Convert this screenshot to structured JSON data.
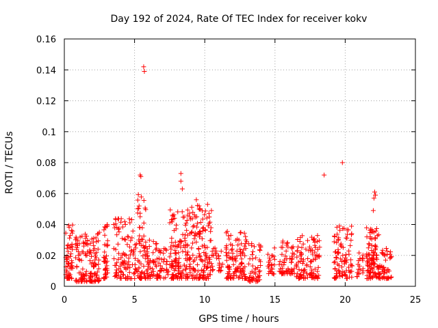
{
  "chart_data": {
    "type": "scatter",
    "title": "Day 192 of 2024, Rate Of TEC Index for receiver kokv",
    "xlabel": "GPS time / hours",
    "ylabel": "ROTI / TECUs",
    "xlim": [
      0,
      25
    ],
    "ylim": [
      0,
      0.16
    ],
    "x_ticks": [
      0,
      5,
      10,
      15,
      20,
      25
    ],
    "y_ticks": [
      0,
      0.02,
      0.04,
      0.06,
      0.08,
      0.1,
      0.12,
      0.14,
      0.16
    ],
    "x_tick_labels": [
      "0",
      "5",
      "10",
      "15",
      "20",
      "25"
    ],
    "y_tick_labels": [
      "0",
      "0.02",
      "0.04",
      "0.06",
      "0.08",
      "0.1",
      "0.12",
      "0.14",
      "0.16"
    ],
    "grid": true,
    "marker": "+",
    "series_color": "#ff0000",
    "clusters": [
      {
        "x_start": 0.1,
        "x_end": 0.6,
        "y_min": 0.005,
        "y_max": 0.04,
        "n": 60
      },
      {
        "x_start": 0.8,
        "x_end": 2.5,
        "y_min": 0.003,
        "y_max": 0.035,
        "n": 140
      },
      {
        "x_start": 2.8,
        "x_end": 3.1,
        "y_min": 0.005,
        "y_max": 0.04,
        "n": 40
      },
      {
        "x_start": 3.5,
        "x_end": 5.2,
        "y_min": 0.005,
        "y_max": 0.045,
        "n": 110
      },
      {
        "x_start": 5.2,
        "x_end": 5.8,
        "y_min": 0.005,
        "y_max": 0.06,
        "n": 60
      },
      {
        "x_start": 5.8,
        "x_end": 7.4,
        "y_min": 0.005,
        "y_max": 0.03,
        "n": 90
      },
      {
        "x_start": 7.5,
        "x_end": 8.8,
        "y_min": 0.005,
        "y_max": 0.05,
        "n": 130
      },
      {
        "x_start": 8.9,
        "x_end": 10.5,
        "y_min": 0.005,
        "y_max": 0.054,
        "n": 140
      },
      {
        "x_start": 10.5,
        "x_end": 11.3,
        "y_min": 0.008,
        "y_max": 0.025,
        "n": 25
      },
      {
        "x_start": 11.5,
        "x_end": 13.0,
        "y_min": 0.005,
        "y_max": 0.036,
        "n": 110
      },
      {
        "x_start": 13.1,
        "x_end": 14.0,
        "y_min": 0.003,
        "y_max": 0.028,
        "n": 50
      },
      {
        "x_start": 14.5,
        "x_end": 15.0,
        "y_min": 0.008,
        "y_max": 0.025,
        "n": 25
      },
      {
        "x_start": 15.3,
        "x_end": 16.4,
        "y_min": 0.008,
        "y_max": 0.03,
        "n": 60
      },
      {
        "x_start": 16.5,
        "x_end": 18.2,
        "y_min": 0.005,
        "y_max": 0.033,
        "n": 110
      },
      {
        "x_start": 19.2,
        "x_end": 20.5,
        "y_min": 0.005,
        "y_max": 0.039,
        "n": 90
      },
      {
        "x_start": 20.8,
        "x_end": 21.3,
        "y_min": 0.006,
        "y_max": 0.025,
        "n": 20
      },
      {
        "x_start": 21.5,
        "x_end": 22.5,
        "y_min": 0.005,
        "y_max": 0.038,
        "n": 110
      },
      {
        "x_start": 22.6,
        "x_end": 23.3,
        "y_min": 0.005,
        "y_max": 0.025,
        "n": 45
      }
    ],
    "notable_points": [
      {
        "x": 5.65,
        "y": 0.142
      },
      {
        "x": 5.7,
        "y": 0.139
      },
      {
        "x": 5.4,
        "y": 0.072
      },
      {
        "x": 5.45,
        "y": 0.071
      },
      {
        "x": 8.3,
        "y": 0.073
      },
      {
        "x": 8.3,
        "y": 0.068
      },
      {
        "x": 8.4,
        "y": 0.063
      },
      {
        "x": 9.4,
        "y": 0.056
      },
      {
        "x": 9.6,
        "y": 0.05
      },
      {
        "x": 10.2,
        "y": 0.053
      },
      {
        "x": 18.5,
        "y": 0.072
      },
      {
        "x": 19.8,
        "y": 0.08
      },
      {
        "x": 22.1,
        "y": 0.061
      },
      {
        "x": 22.15,
        "y": 0.059
      },
      {
        "x": 22.05,
        "y": 0.057
      },
      {
        "x": 22.0,
        "y": 0.049
      },
      {
        "x": 19.6,
        "y": 0.039
      },
      {
        "x": 21.8,
        "y": 0.037
      }
    ]
  }
}
